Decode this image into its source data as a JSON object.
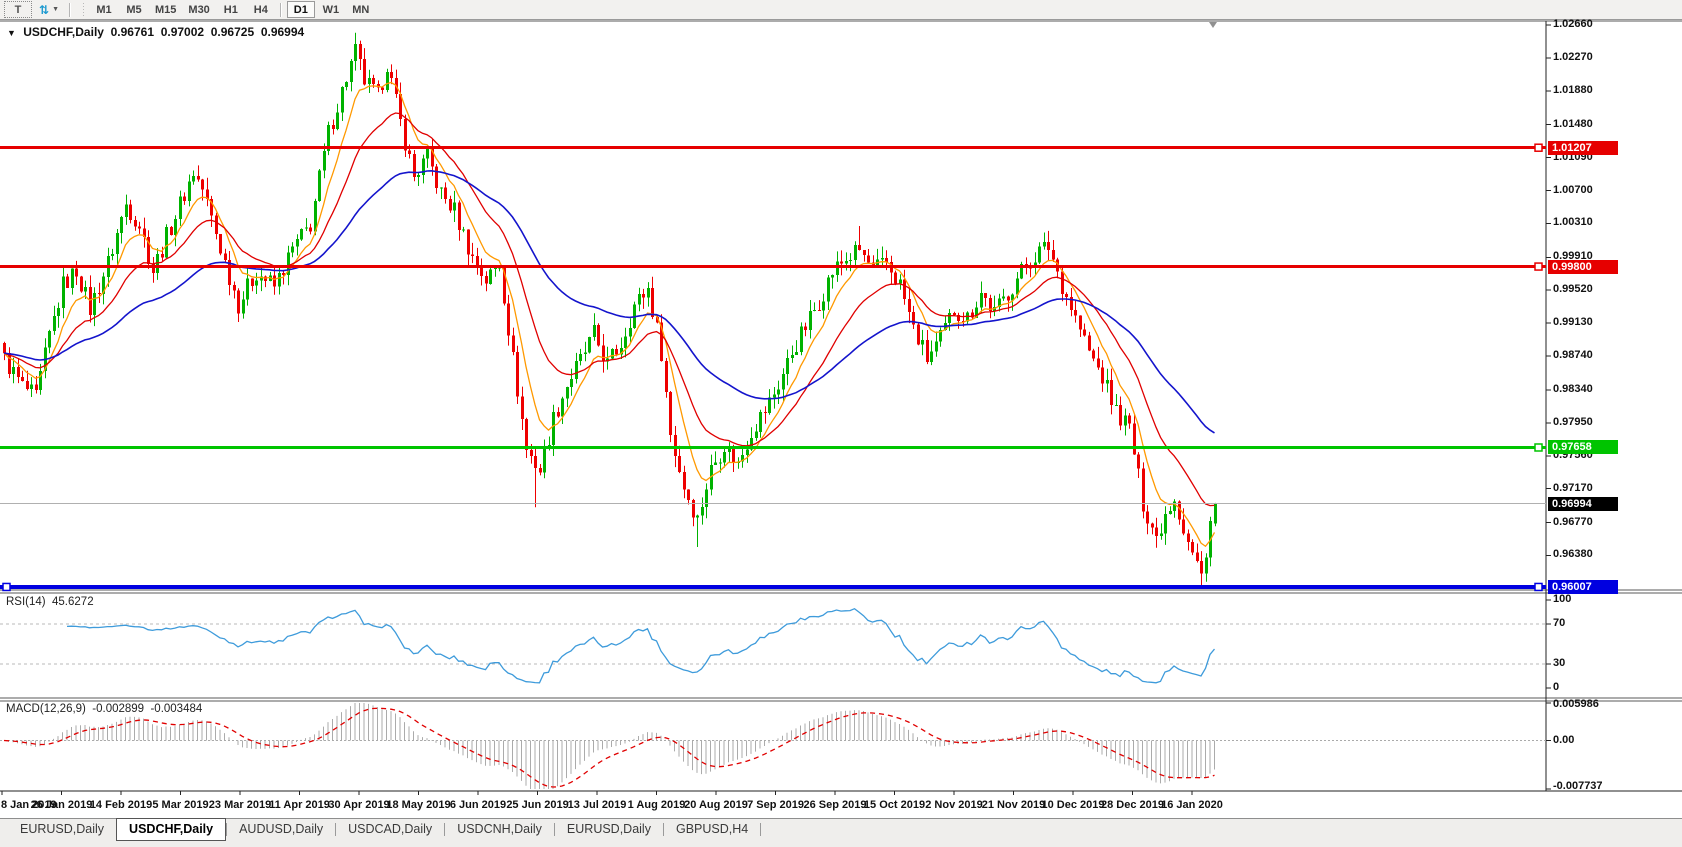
{
  "toolbar": {
    "text_tool_glyph": "T",
    "arrows_tool_glyph": "⇅",
    "dropdown_caret": "▼",
    "timeframes": [
      "M1",
      "M5",
      "M15",
      "M30",
      "H1",
      "H4",
      "D1",
      "W1",
      "MN"
    ],
    "active_timeframe": "D1"
  },
  "chart": {
    "title_marker": "▼",
    "title": "USDCHF,Daily",
    "ohlc": {
      "open": "0.96761",
      "high": "0.97002",
      "low": "0.96725",
      "close": "0.96994"
    }
  },
  "rsi_panel": {
    "name": "RSI(14)",
    "value": "45.6272"
  },
  "macd_panel": {
    "name": "MACD(12,26,9)",
    "value_main": "-0.002899",
    "value_signal": "-0.003484"
  },
  "tabs": {
    "items": [
      "EURUSD,Daily",
      "USDCHF,Daily",
      "AUDUSD,Daily",
      "USDCAD,Daily",
      "USDCNH,Daily",
      "EURUSD,Daily",
      "GBPUSD,H4"
    ],
    "active_index": 1
  },
  "chart_data": {
    "type": "candlestick",
    "symbol": "USDCHF",
    "timeframe": "Daily",
    "last_ohlc": {
      "open": 0.96761,
      "high": 0.97002,
      "low": 0.96725,
      "close": 0.96994
    },
    "colors": {
      "up_candle": "#00b200",
      "down_candle": "#ee0000",
      "ma_fast": "#ff9900",
      "ma_mid": "#e00000",
      "ma_slow": "#1414cc",
      "rsi_line": "#3e9bdb",
      "macd_hist": "#ababab",
      "macd_signal": "#e00000",
      "level_red": "#e60000",
      "level_green": "#00c400",
      "level_blue": "#0000e0",
      "current_price_label_bg": "#000000"
    },
    "price_axis_ticks": [
      "1.02660",
      "1.02270",
      "1.01880",
      "1.01480",
      "1.01090",
      "1.00700",
      "1.00310",
      "0.99910",
      "0.99520",
      "0.99130",
      "0.98740",
      "0.98340",
      "0.97950",
      "0.97560",
      "0.97170",
      "0.96770",
      "0.96380"
    ],
    "price_axis_range": [
      0.95971,
      1.02707
    ],
    "horizontal_levels": [
      {
        "price": 1.01207,
        "label": "1.01207",
        "color": "#e60000",
        "width": 3
      },
      {
        "price": 0.998,
        "label": "0.99800",
        "color": "#e60000",
        "width": 3
      },
      {
        "price": 0.97658,
        "label": "0.97658",
        "color": "#00c400",
        "width": 3
      },
      {
        "price": 0.96007,
        "label": "0.96007",
        "color": "#0000e0",
        "width": 4
      }
    ],
    "current_price": {
      "value": 0.96994,
      "label": "0.96994"
    },
    "x_axis_dates": [
      "8 Jan 2019",
      "26 Jan 2019",
      "14 Feb 2019",
      "5 Mar 2019",
      "23 Mar 2019",
      "11 Apr 2019",
      "30 Apr 2019",
      "18 May 2019",
      "6 Jun 2019",
      "25 Jun 2019",
      "13 Jul 2019",
      "1 Aug 2019",
      "20 Aug 2019",
      "7 Sep 2019",
      "26 Sep 2019",
      "15 Oct 2019",
      "2 Nov 2019",
      "21 Nov 2019",
      "10 Dec 2019",
      "28 Dec 2019",
      "16 Jan 2020"
    ],
    "candles_total": 270,
    "price_path": [
      [
        0,
        0.987
      ],
      [
        4,
        0.9838
      ],
      [
        7,
        0.9824
      ],
      [
        10,
        0.9898
      ],
      [
        13,
        0.9958
      ],
      [
        16,
        0.9976
      ],
      [
        19,
        0.993
      ],
      [
        23,
        0.9984
      ],
      [
        27,
        1.0054
      ],
      [
        30,
        1.003
      ],
      [
        33,
        0.9976
      ],
      [
        37,
        1.0028
      ],
      [
        42,
        1.0092
      ],
      [
        44,
        1.0072
      ],
      [
        48,
        1.0002
      ],
      [
        52,
        0.9936
      ],
      [
        56,
        0.9974
      ],
      [
        60,
        0.9956
      ],
      [
        64,
        1.0
      ],
      [
        68,
        1.003
      ],
      [
        72,
        1.0138
      ],
      [
        76,
        1.0204
      ],
      [
        78,
        1.0234
      ],
      [
        80,
        1.02
      ],
      [
        83,
        1.018
      ],
      [
        85,
        1.0221
      ],
      [
        88,
        1.015
      ],
      [
        91,
        1.0086
      ],
      [
        94,
        1.011
      ],
      [
        97,
        1.0066
      ],
      [
        100,
        1.0046
      ],
      [
        104,
        0.999
      ],
      [
        107,
        0.9964
      ],
      [
        110,
        0.9984
      ],
      [
        113,
        0.987
      ],
      [
        116,
        0.9763
      ],
      [
        119,
        0.9739
      ],
      [
        122,
        0.98
      ],
      [
        125,
        0.984
      ],
      [
        128,
        0.9869
      ],
      [
        131,
        0.9899
      ],
      [
        134,
        0.9864
      ],
      [
        137,
        0.9889
      ],
      [
        140,
        0.9934
      ],
      [
        143,
        0.9954
      ],
      [
        146,
        0.988
      ],
      [
        148,
        0.9781
      ],
      [
        151,
        0.972
      ],
      [
        154,
        0.9681
      ],
      [
        157,
        0.974
      ],
      [
        160,
        0.977
      ],
      [
        163,
        0.9746
      ],
      [
        166,
        0.9786
      ],
      [
        169,
        0.981
      ],
      [
        172,
        0.984
      ],
      [
        175,
        0.9879
      ],
      [
        178,
        0.9909
      ],
      [
        181,
        0.9939
      ],
      [
        184,
        0.9974
      ],
      [
        187,
        0.9989
      ],
      [
        190,
        0.9999
      ],
      [
        193,
        0.9975
      ],
      [
        196,
        0.9984
      ],
      [
        199,
        0.9959
      ],
      [
        202,
        0.9906
      ],
      [
        205,
        0.9871
      ],
      [
        208,
        0.9894
      ],
      [
        211,
        0.9929
      ],
      [
        214,
        0.9919
      ],
      [
        217,
        0.9949
      ],
      [
        220,
        0.9925
      ],
      [
        223,
        0.9949
      ],
      [
        226,
        0.9974
      ],
      [
        229,
        0.9994
      ],
      [
        232,
        1.0004
      ],
      [
        235,
        0.9959
      ],
      [
        238,
        0.9919
      ],
      [
        241,
        0.9879
      ],
      [
        244,
        0.9849
      ],
      [
        247,
        0.9809
      ],
      [
        250,
        0.9789
      ],
      [
        253,
        0.97
      ],
      [
        256,
        0.9659
      ],
      [
        258,
        0.9689
      ],
      [
        260,
        0.9709
      ],
      [
        262,
        0.9669
      ],
      [
        264,
        0.9639
      ],
      [
        266,
        0.9614
      ],
      [
        268,
        0.9679
      ],
      [
        269,
        0.96994
      ]
    ],
    "wick_spikes": [
      {
        "i": 78,
        "high": 1.0249
      },
      {
        "i": 118,
        "low": 0.9695
      },
      {
        "i": 154,
        "low": 0.9648
      },
      {
        "i": 190,
        "high": 1.0028
      },
      {
        "i": 266,
        "low": 0.9603
      }
    ],
    "moving_averages": [
      {
        "name": "fast",
        "period": 8,
        "color": "#ff9900"
      },
      {
        "name": "mid",
        "period": 20,
        "color": "#e00000"
      },
      {
        "name": "slow",
        "period": 52,
        "color": "#1414cc"
      }
    ],
    "rsi": {
      "period": 14,
      "axis_ticks": [
        100,
        70,
        30,
        0
      ],
      "dashed_levels": [
        70,
        30
      ],
      "range": [
        0,
        100
      ],
      "color": "#3e9bdb"
    },
    "macd": {
      "params": [
        12,
        26,
        9
      ],
      "axis_max": 0.005986,
      "axis_zero": "0.00",
      "axis_min": -0.007737
    }
  }
}
